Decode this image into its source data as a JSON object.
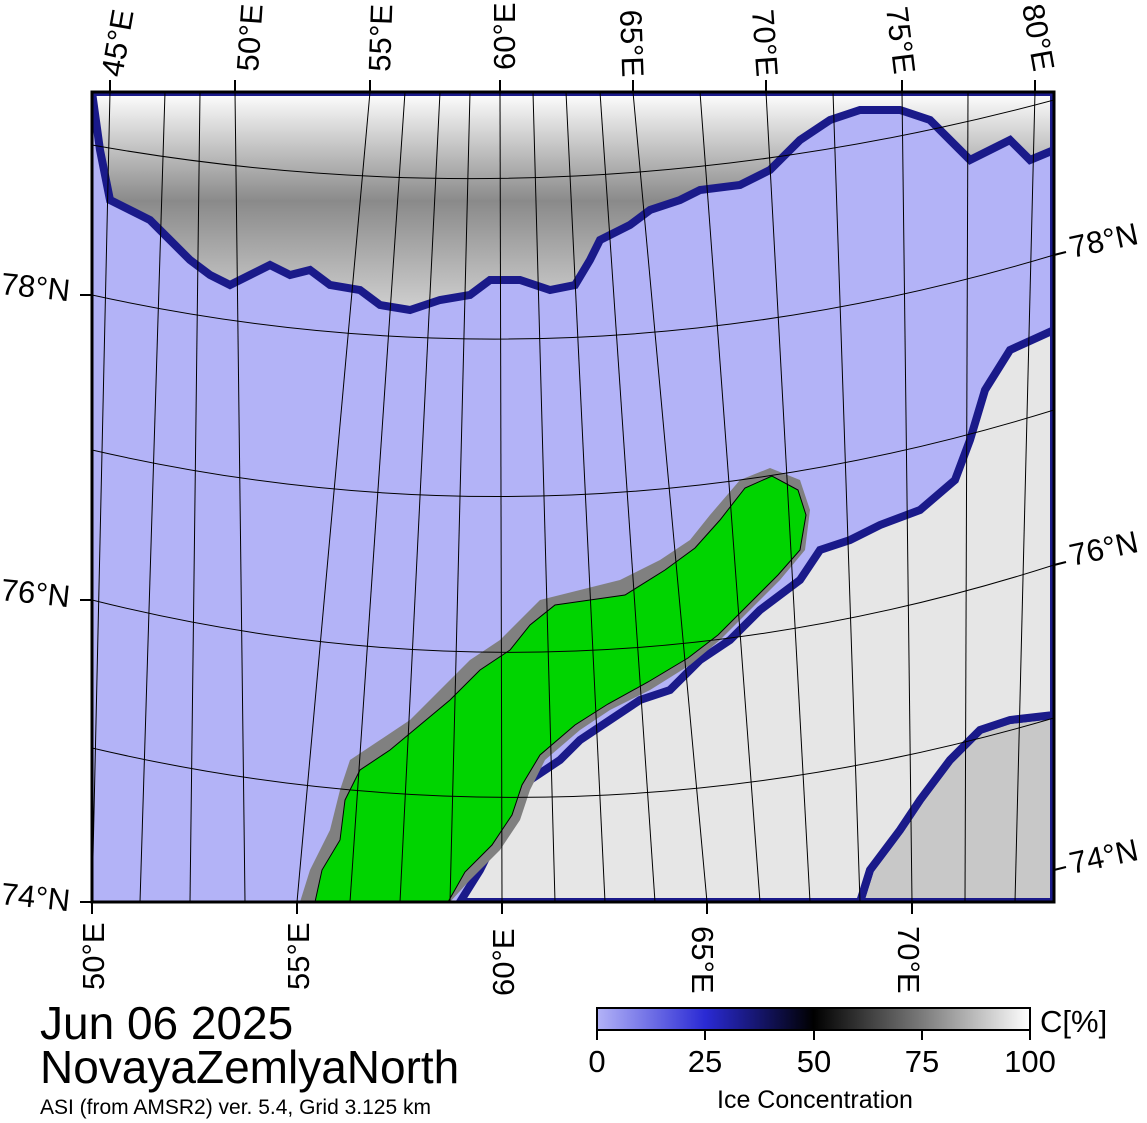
{
  "map": {
    "date": "Jun 06 2025",
    "region": "NovayaZemlyaNorth",
    "product": "ASI (from AMSR2) ver. 5.4,  Grid 3.125 km",
    "top_lon_labels": [
      "45°E",
      "50°E",
      "55°E",
      "60°E",
      "65°E",
      "70°E",
      "75°E",
      "80°E"
    ],
    "bottom_lon_labels": [
      "50°E",
      "55°E",
      "60°E",
      "65°E",
      "70°E"
    ],
    "left_lat_labels": [
      "78°N",
      "76°N",
      "74°N"
    ],
    "right_lat_labels": [
      "78°N",
      "76°N",
      "74°N"
    ],
    "colors": {
      "open_water": "#b3b3f7",
      "land": "#00d400",
      "coast_mask": "#808080",
      "ice_high": "#ffffff",
      "ice_low": "#000000"
    }
  },
  "colorbar": {
    "unit": "C[%]",
    "label": "Ice Concentration",
    "ticks": [
      "0",
      "25",
      "50",
      "75",
      "100"
    ],
    "stops": [
      "#b3b3f7",
      "#2a2ad4",
      "#000000",
      "#7a7a7a",
      "#ffffff"
    ]
  }
}
